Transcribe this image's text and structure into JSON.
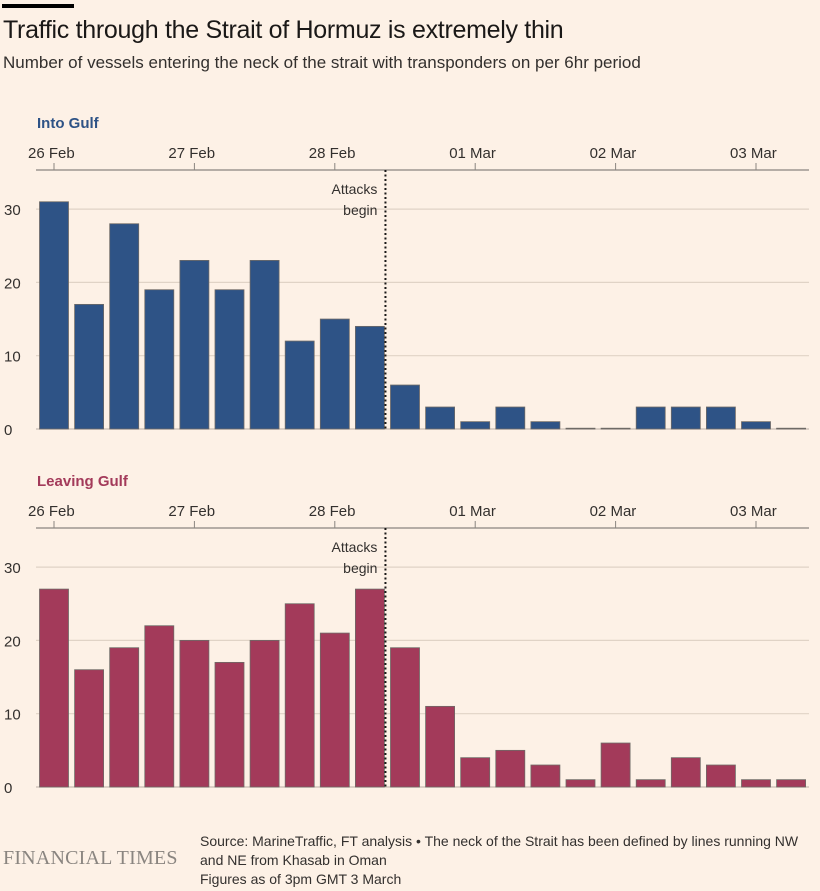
{
  "header": {
    "title": "Traffic through the Strait of Hormuz is extremely thin",
    "subtitle": "Number of vessels entering the neck of the strait with transponders on per 6hr period"
  },
  "chart_data": [
    {
      "type": "bar",
      "title": "Into Gulf",
      "color": "#2e5386",
      "xlabel": "",
      "ylabel": "",
      "ylim": [
        0,
        30
      ],
      "yticks": [
        0,
        10,
        20,
        30
      ],
      "grid": true,
      "interval": "6hr",
      "x_tick_labels": [
        "26 Feb",
        "27 Feb",
        "28 Feb",
        "01 Mar",
        "02 Mar",
        "03 Mar"
      ],
      "categories": [
        "26 Feb 00:00",
        "26 Feb 06:00",
        "26 Feb 12:00",
        "26 Feb 18:00",
        "27 Feb 00:00",
        "27 Feb 06:00",
        "27 Feb 12:00",
        "27 Feb 18:00",
        "28 Feb 00:00",
        "28 Feb 06:00",
        "28 Feb 12:00",
        "28 Feb 18:00",
        "01 Mar 00:00",
        "01 Mar 06:00",
        "01 Mar 12:00",
        "01 Mar 18:00",
        "02 Mar 00:00",
        "02 Mar 06:00",
        "02 Mar 12:00",
        "02 Mar 18:00",
        "03 Mar 00:00",
        "03 Mar 06:00"
      ],
      "values": [
        31,
        17,
        28,
        19,
        23,
        19,
        23,
        12,
        15,
        14,
        6,
        3,
        1,
        3,
        1,
        0,
        0,
        3,
        3,
        3,
        1,
        0
      ],
      "annotation": {
        "text": [
          "Attacks",
          "begin"
        ],
        "x_index": 9
      }
    },
    {
      "type": "bar",
      "title": "Leaving Gulf",
      "color": "#a33a5a",
      "xlabel": "",
      "ylabel": "",
      "ylim": [
        0,
        30
      ],
      "yticks": [
        0,
        10,
        20,
        30
      ],
      "grid": true,
      "interval": "6hr",
      "x_tick_labels": [
        "26 Feb",
        "27 Feb",
        "28 Feb",
        "01 Mar",
        "02 Mar",
        "03 Mar"
      ],
      "categories": [
        "26 Feb 00:00",
        "26 Feb 06:00",
        "26 Feb 12:00",
        "26 Feb 18:00",
        "27 Feb 00:00",
        "27 Feb 06:00",
        "27 Feb 12:00",
        "27 Feb 18:00",
        "28 Feb 00:00",
        "28 Feb 06:00",
        "28 Feb 12:00",
        "28 Feb 18:00",
        "01 Mar 00:00",
        "01 Mar 06:00",
        "01 Mar 12:00",
        "01 Mar 18:00",
        "02 Mar 00:00",
        "02 Mar 06:00",
        "02 Mar 12:00",
        "02 Mar 18:00",
        "03 Mar 00:00",
        "03 Mar 06:00"
      ],
      "values": [
        27,
        16,
        19,
        22,
        20,
        17,
        20,
        25,
        21,
        27,
        19,
        11,
        4,
        5,
        3,
        1,
        6,
        1,
        4,
        3,
        1,
        1
      ],
      "annotation": {
        "text": [
          "Attacks",
          "begin"
        ],
        "x_index": 9
      }
    }
  ],
  "footer": {
    "brand": "FINANCIAL TIMES",
    "source_line": "Source: MarineTraffic, FT analysis • The neck of the Strait has been defined by lines running NW and NE from Khasab in Oman",
    "note_line": "Figures as of 3pm GMT 3 March"
  }
}
